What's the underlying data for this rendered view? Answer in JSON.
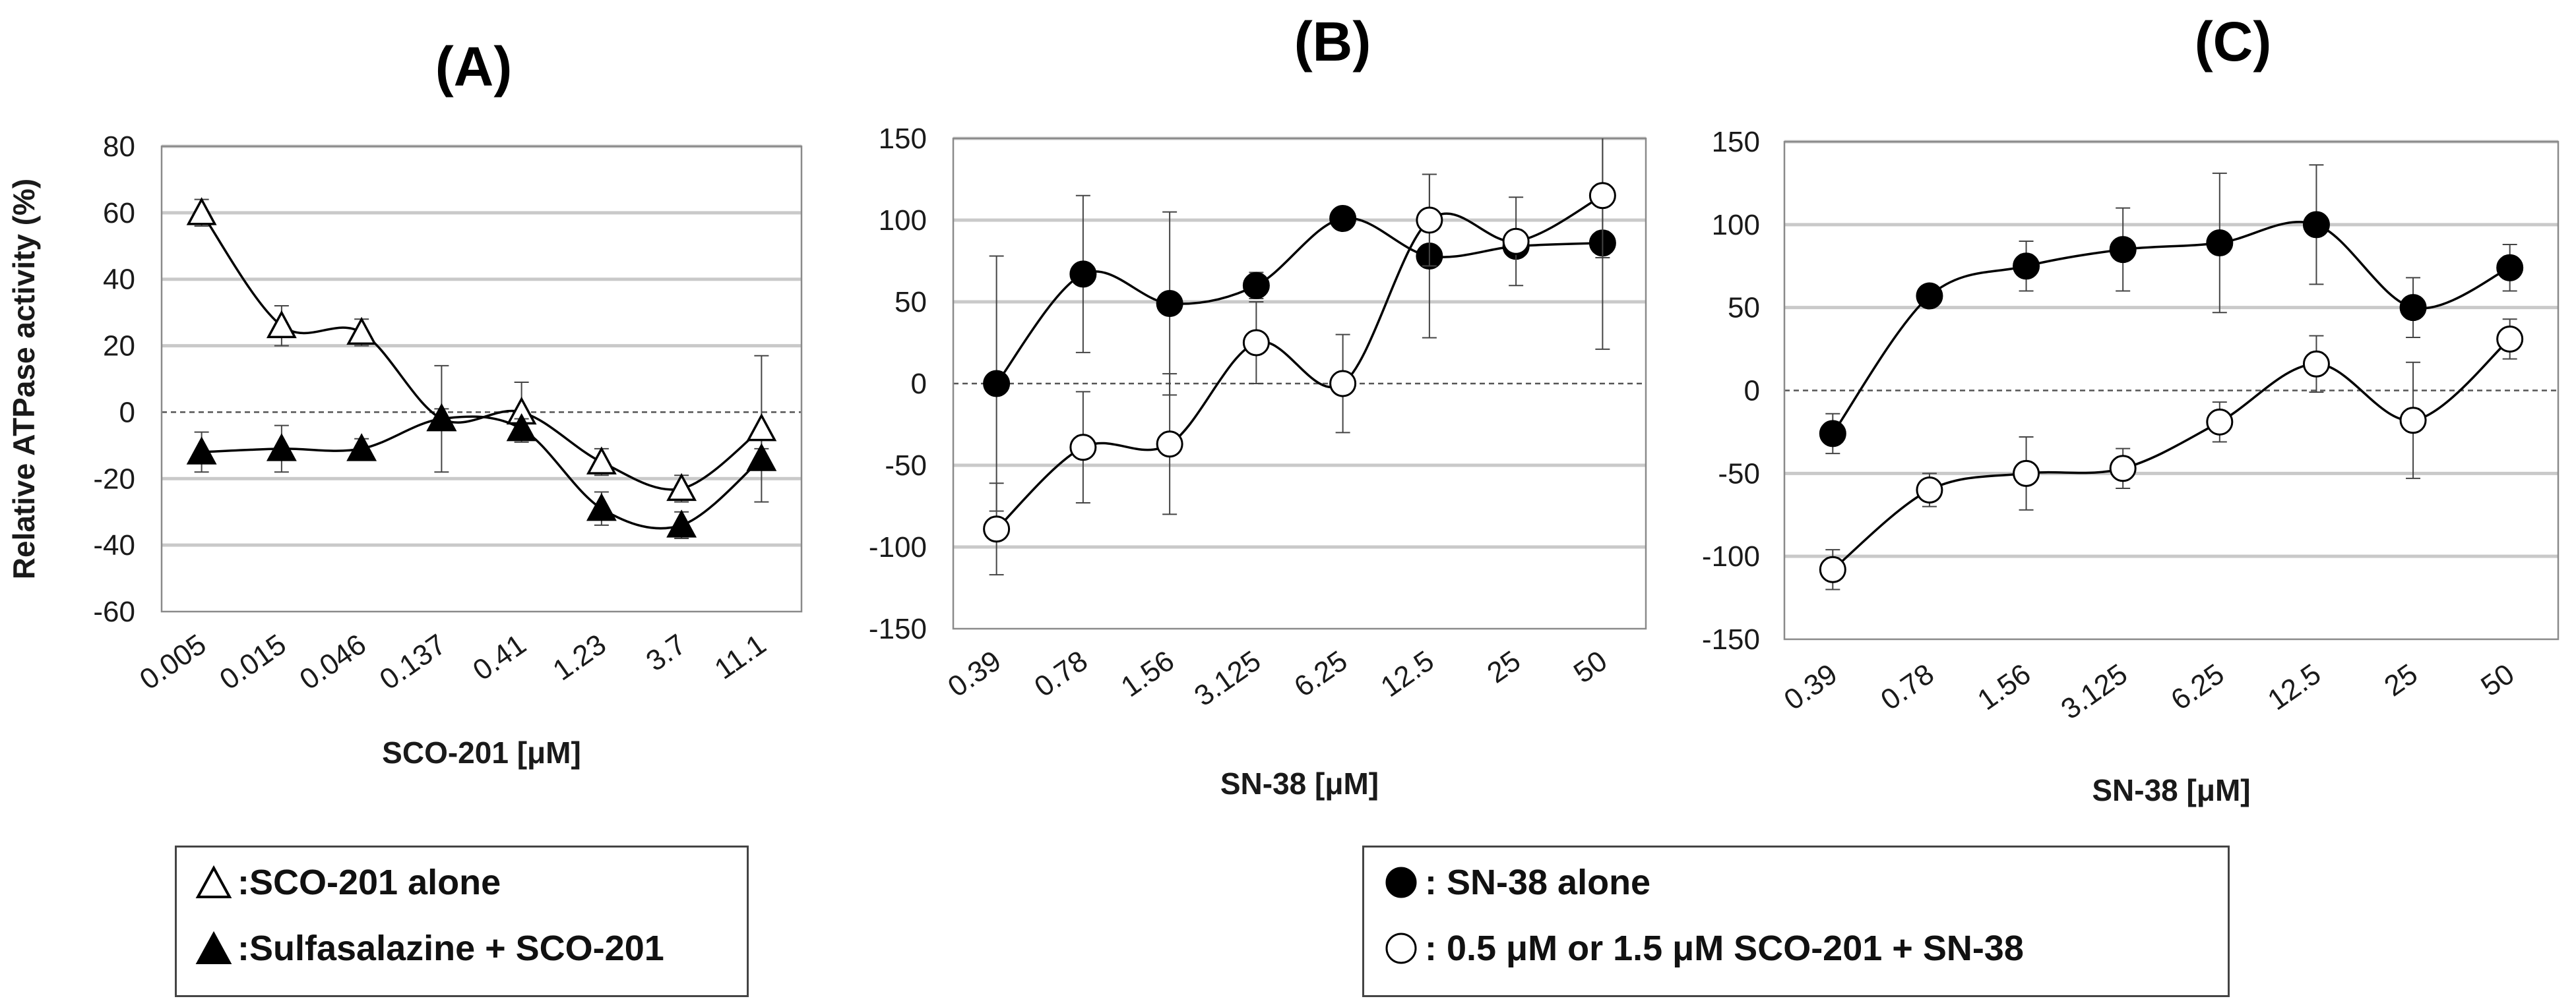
{
  "chart_data": [
    {
      "panel": "(A)",
      "type": "line",
      "title": "(A)",
      "xlabel": "SCO-201 [μM]",
      "ylabel": "Relative ATPase activity (%)",
      "categories": [
        "0.005",
        "0.015",
        "0.046",
        "0.137",
        "0.41",
        "1.23",
        "3.7",
        "11.1"
      ],
      "ylim": [
        -60,
        80
      ],
      "yticks": [
        -60,
        -40,
        -20,
        0,
        20,
        40,
        60,
        80
      ],
      "zero_line": "dashed",
      "series": [
        {
          "name": ":SCO-201 alone",
          "marker": "open-triangle",
          "values": [
            60,
            26,
            24,
            -2,
            0,
            -15,
            -23,
            -5
          ],
          "errors": [
            4,
            6,
            4,
            16,
            9,
            4,
            4,
            22
          ]
        },
        {
          "name": ":Sulfasalazine + SCO-201",
          "marker": "filled-triangle",
          "values": [
            -12,
            -11,
            -11,
            -2,
            -5,
            -29,
            -34,
            -14
          ],
          "errors": [
            6,
            7,
            3,
            3,
            3,
            5,
            4,
            3
          ]
        }
      ]
    },
    {
      "panel": "(B)",
      "type": "line",
      "title": "(B)",
      "xlabel": "SN-38 [μM]",
      "ylabel": "",
      "categories": [
        "0.39",
        "0.78",
        "1.56",
        "3.125",
        "6.25",
        "12.5",
        "25",
        "50"
      ],
      "ylim": [
        -150,
        150
      ],
      "yticks": [
        -150,
        -100,
        -50,
        0,
        50,
        100,
        150
      ],
      "zero_line": "dashed",
      "series": [
        {
          "name": ": SN-38 alone",
          "marker": "filled-circle",
          "values": [
            0,
            67,
            49,
            60,
            101,
            78,
            84,
            86
          ],
          "errors": [
            78,
            48,
            56,
            8,
            0,
            50,
            0,
            65
          ]
        },
        {
          "name": ": 0.5 μM or 1.5 μM SCO-201 + SN-38",
          "marker": "open-circle",
          "values": [
            -89,
            -39,
            -37,
            25,
            0,
            100,
            87,
            115
          ],
          "errors": [
            28,
            34,
            43,
            25,
            30,
            28,
            27,
            38
          ]
        }
      ]
    },
    {
      "panel": "(C)",
      "type": "line",
      "title": "(C)",
      "xlabel": "SN-38 [μM]",
      "ylabel": "",
      "categories": [
        "0.39",
        "0.78",
        "1.56",
        "3.125",
        "6.25",
        "12.5",
        "25",
        "50"
      ],
      "ylim": [
        -150,
        150
      ],
      "yticks": [
        -150,
        -100,
        -50,
        0,
        50,
        100,
        150
      ],
      "zero_line": "dashed",
      "series": [
        {
          "name": ": SN-38 alone",
          "marker": "filled-circle",
          "values": [
            -26,
            57,
            75,
            85,
            89,
            100,
            50,
            74
          ],
          "errors": [
            12,
            0,
            15,
            25,
            42,
            36,
            18,
            14
          ]
        },
        {
          "name": ": 0.5 μM or 1.5 μM SCO-201 + SN-38",
          "marker": "open-circle",
          "values": [
            -108,
            -60,
            -50,
            -47,
            -19,
            16,
            -18,
            31
          ],
          "errors": [
            12,
            10,
            22,
            12,
            12,
            17,
            35,
            12
          ]
        }
      ]
    }
  ],
  "legend_left": {
    "items": [
      {
        "marker": "open-triangle",
        "label": ":SCO-201 alone"
      },
      {
        "marker": "filled-triangle",
        "label": ":Sulfasalazine + SCO-201"
      }
    ]
  },
  "legend_right": {
    "items": [
      {
        "marker": "filled-circle",
        "label": ": SN-38 alone"
      },
      {
        "marker": "open-circle",
        "label": ": 0.5 μM or 1.5 μM SCO-201 + SN-38"
      }
    ]
  }
}
